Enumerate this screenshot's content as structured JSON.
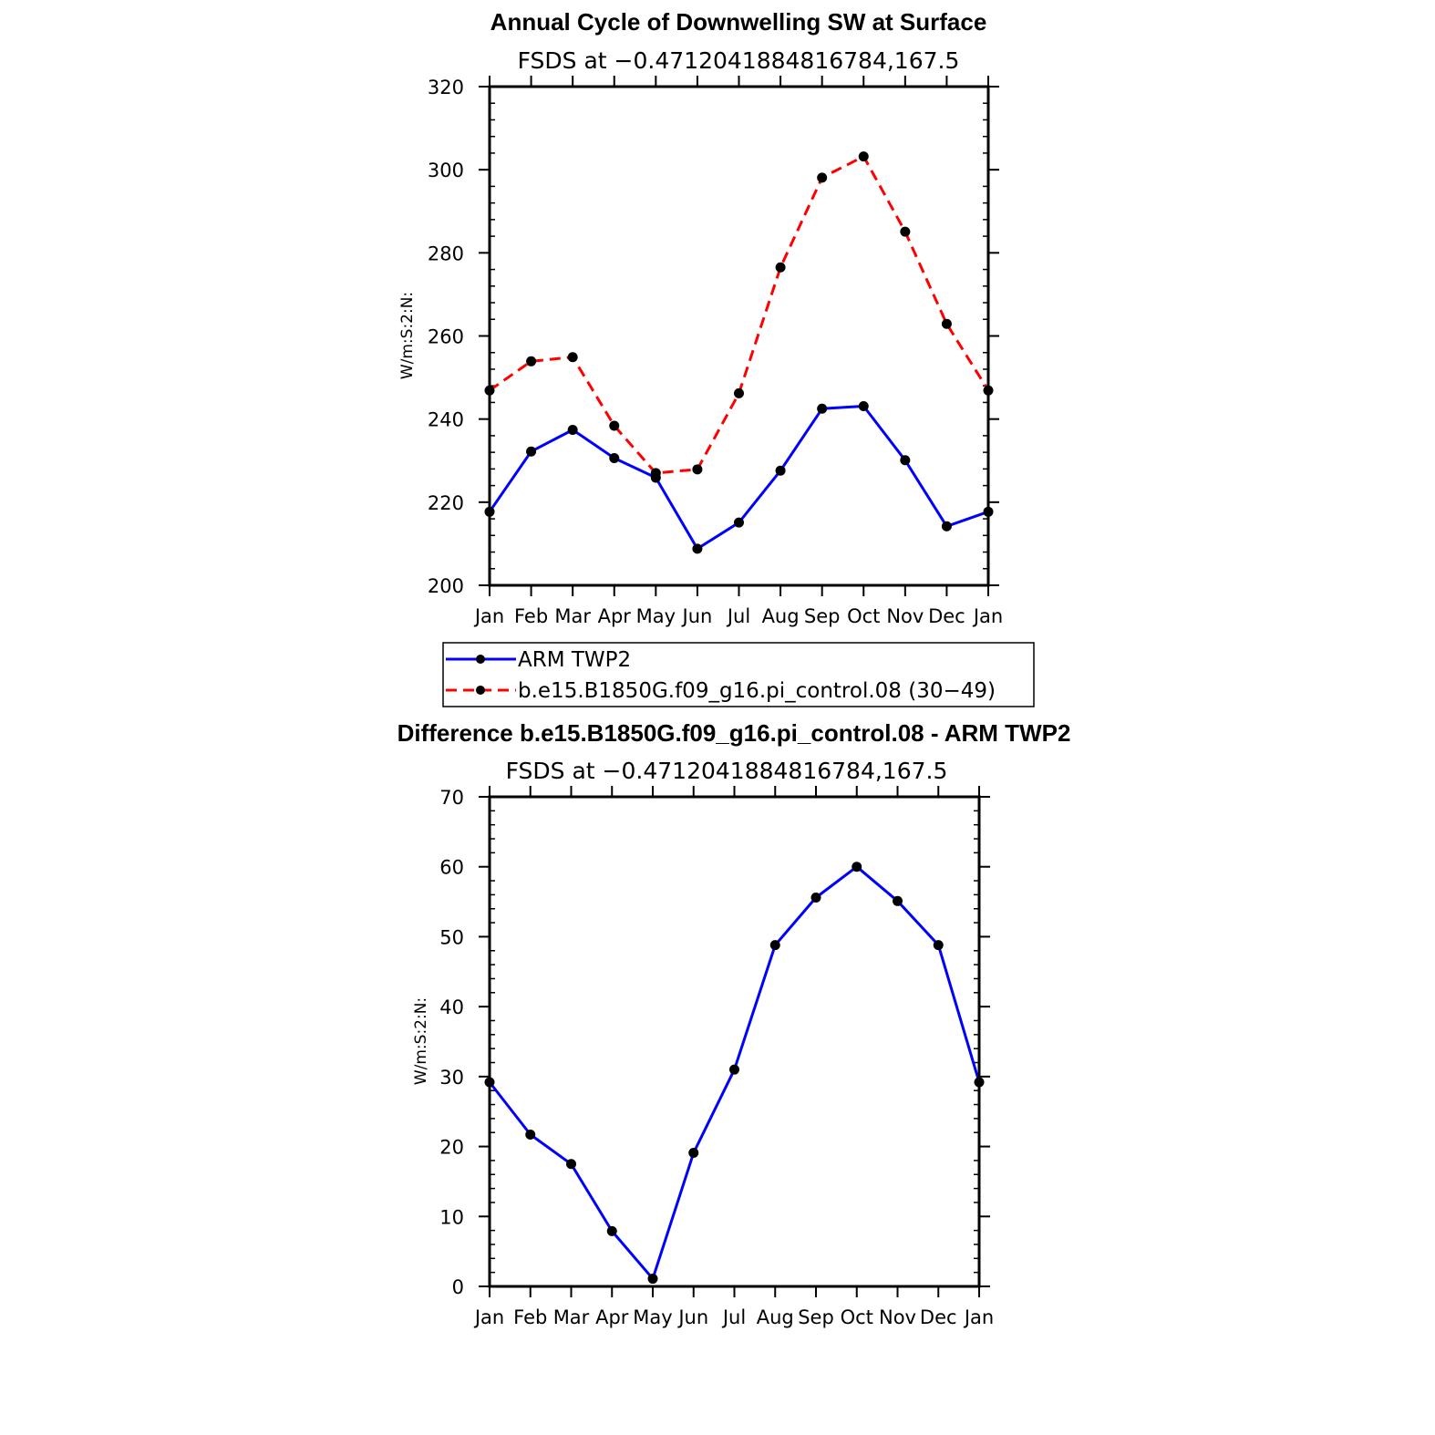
{
  "chart_data": [
    {
      "type": "line",
      "title": "Annual Cycle of Downwelling SW at Surface",
      "subtitle": "FSDS at −0.4712041884816784,167.5",
      "ylabel": "W/m:S:2:N:",
      "xlabel": "",
      "ylim": [
        200,
        320
      ],
      "yticks": [
        200,
        220,
        240,
        260,
        280,
        300,
        320
      ],
      "categories": [
        "Jan",
        "Feb",
        "Mar",
        "Apr",
        "May",
        "Jun",
        "Jul",
        "Aug",
        "Sep",
        "Oct",
        "Nov",
        "Dec",
        "Jan"
      ],
      "grid": false,
      "legend_position": "below",
      "series": [
        {
          "name": "ARM TWP2",
          "color": "#0000ff",
          "dash": false,
          "values": [
            217.7,
            232.2,
            237.4,
            230.6,
            225.9,
            208.8,
            215.1,
            227.6,
            242.5,
            243.1,
            230.1,
            214.2,
            217.7
          ]
        },
        {
          "name": "b.e15.B1850G.f09_g16.pi_control.08 (30−49)",
          "color": "#ff0000",
          "dash": true,
          "values": [
            246.9,
            253.9,
            254.9,
            238.4,
            227.0,
            227.9,
            246.2,
            276.5,
            298.1,
            303.2,
            285.1,
            262.9,
            246.9
          ]
        }
      ]
    },
    {
      "type": "line",
      "title": "Difference b.e15.B1850G.f09_g16.pi_control.08 - ARM TWP2",
      "subtitle": "FSDS at −0.4712041884816784,167.5",
      "ylabel": "W/m:S:2:N:",
      "xlabel": "",
      "ylim": [
        0,
        70
      ],
      "yticks": [
        0,
        10,
        20,
        30,
        40,
        50,
        60,
        70
      ],
      "categories": [
        "Jan",
        "Feb",
        "Mar",
        "Apr",
        "May",
        "Jun",
        "Jul",
        "Aug",
        "Sep",
        "Oct",
        "Nov",
        "Dec",
        "Jan"
      ],
      "grid": false,
      "series": [
        {
          "color": "#0000ff",
          "dash": false,
          "values": [
            29.2,
            21.7,
            17.5,
            7.9,
            1.1,
            19.1,
            31.0,
            48.8,
            55.6,
            60.0,
            55.1,
            48.8,
            29.2
          ]
        }
      ]
    }
  ]
}
